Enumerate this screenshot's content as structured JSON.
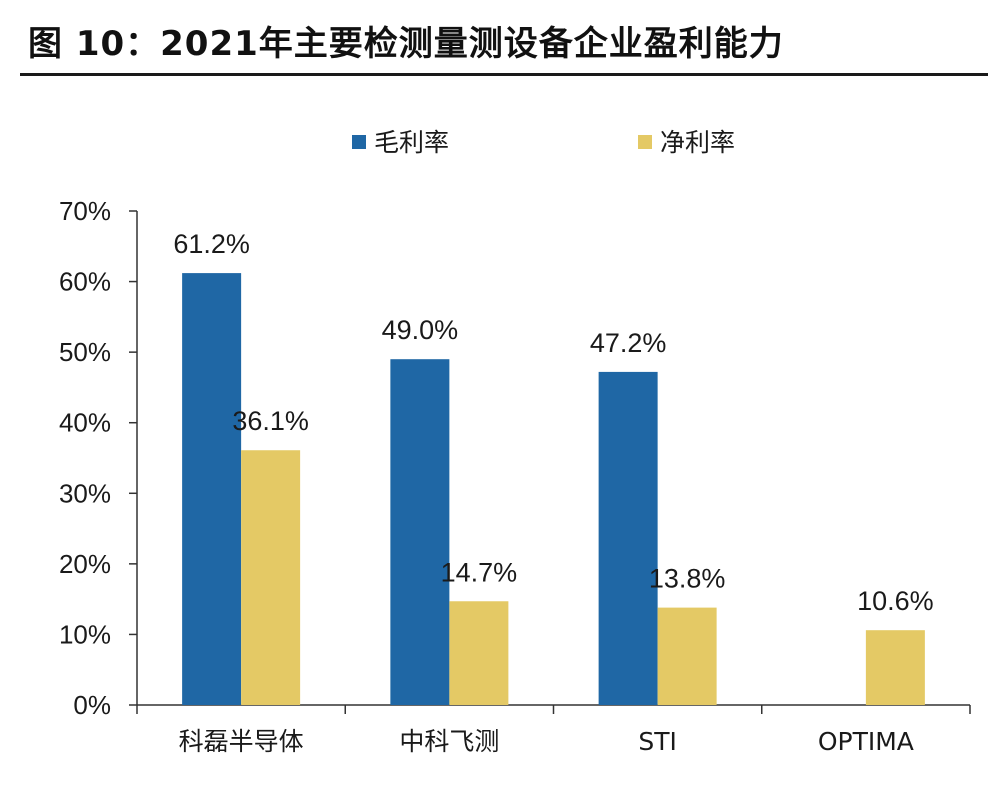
{
  "figure": {
    "title": "图 10：2021年主要检测量测设备企业盈利能力"
  },
  "colors": {
    "gross_margin": "#1f67a5",
    "net_margin": "#e4c965",
    "axis": "#333333",
    "rule": "#1a1a1a"
  },
  "chart_data": {
    "type": "bar",
    "title": "",
    "xlabel": "",
    "ylabel": "",
    "categories": [
      "科磊半导体",
      "中科飞测",
      "STI",
      "OPTIMA"
    ],
    "series": [
      {
        "name": "毛利率",
        "values": [
          61.2,
          49.0,
          47.2,
          null
        ],
        "labels": [
          "61.2%",
          "49.0%",
          "47.2%",
          ""
        ]
      },
      {
        "name": "净利率",
        "values": [
          36.1,
          14.7,
          13.8,
          10.6
        ],
        "labels": [
          "36.1%",
          "14.7%",
          "13.8%",
          "10.6%"
        ]
      }
    ],
    "ylim": [
      0,
      70
    ],
    "yticks": [
      0,
      10,
      20,
      30,
      40,
      50,
      60,
      70
    ],
    "ytick_labels": [
      "0%",
      "10%",
      "20%",
      "30%",
      "40%",
      "50%",
      "60%",
      "70%"
    ],
    "legend_position": "top",
    "grid": false
  }
}
